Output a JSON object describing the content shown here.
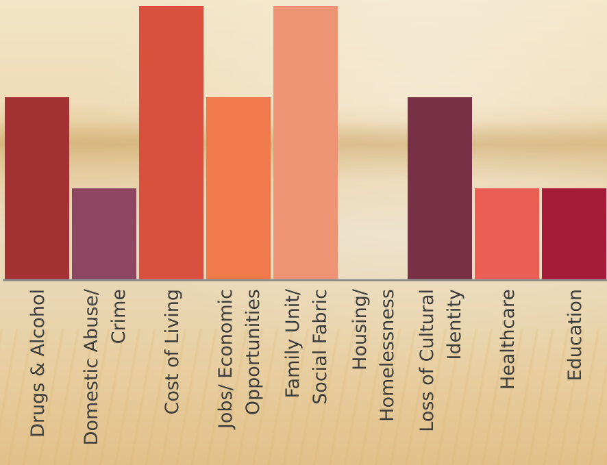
{
  "chart_data": {
    "type": "bar",
    "categories": [
      [
        "Drugs & Alcohol"
      ],
      [
        "Domestic Abuse/",
        "Crime"
      ],
      [
        "Cost of Living"
      ],
      [
        "Jobs/ Economic",
        "Opportunities"
      ],
      [
        "Family Unit/",
        "Social Fabric"
      ],
      [
        "Housing/",
        "Homelessness"
      ],
      [
        "Loss of Cultural",
        "Identity"
      ],
      [
        "Healthcare"
      ],
      [
        "Education"
      ]
    ],
    "values": [
      2,
      1,
      3,
      2,
      3,
      0,
      2,
      1,
      1
    ],
    "colors": [
      "#a33133",
      "#8c4661",
      "#d9503f",
      "#f17a4c",
      "#ed9475",
      "#e9d3b0",
      "#773046",
      "#eb5e54",
      "#a51c39"
    ],
    "axis_color": "#8d8d8d",
    "label_color": "#3b3b3b",
    "ylim": [
      0,
      3
    ]
  }
}
